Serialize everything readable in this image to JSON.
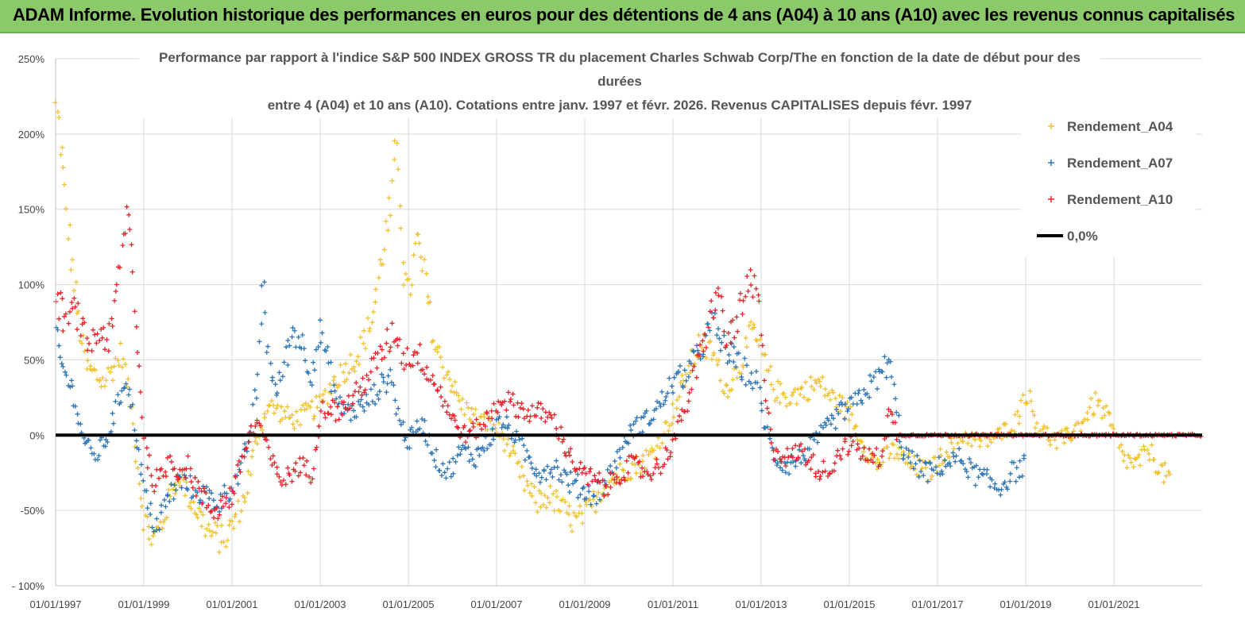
{
  "banner": {
    "title": "ADAM Informe. Evolution historique des performances en euros pour des détentions de 4 ans (A04) à 10 ans (A10) avec les revenus connus capitalisés"
  },
  "colors": {
    "banner_bg": "#8cc96a",
    "a04": "#f2c12e",
    "a07": "#2e75b6",
    "a10": "#e8232a",
    "zero": "#000000",
    "grid": "#d9d9d9"
  },
  "chart_data": {
    "type": "scatter",
    "title_lines": [
      "Performance par rapport à l'indice S&P 500 INDEX GROSS TR  du placement Charles Schwab Corp/The en fonction de la date de début pour des",
      "durées",
      "entre 4 (A04) et 10 ans (A10). Cotations entre janv. 1997 et févr. 2026. Revenus CAPITALISES depuis févr. 1997"
    ],
    "x_axis": {
      "range": [
        1997.0,
        2023.0
      ],
      "ticks": [
        1997,
        1999,
        2001,
        2003,
        2005,
        2007,
        2009,
        2011,
        2013,
        2015,
        2017,
        2019,
        2021
      ],
      "tick_labels": [
        "01/01/1997",
        "01/01/1999",
        "01/01/2001",
        "01/01/2003",
        "01/01/2005",
        "01/01/2007",
        "01/01/2009",
        "01/01/2011",
        "01/01/2013",
        "01/01/2015",
        "01/01/2017",
        "01/01/2019",
        "01/01/2021"
      ]
    },
    "y_axis": {
      "range": [
        -100,
        250
      ],
      "ticks": [
        -100,
        -50,
        0,
        50,
        100,
        150,
        200,
        250
      ],
      "tick_labels": [
        "- 100%",
        "-50%",
        "0%",
        "50%",
        "100%",
        "150%",
        "200%",
        "250%"
      ],
      "unit": "%"
    },
    "legend_position": "top-right",
    "series": [
      {
        "name": "Rendement_A04",
        "marker": "+",
        "color": "#f2c12e",
        "points": [
          [
            1997.0,
            215
          ],
          [
            1997.1,
            200
          ],
          [
            1997.2,
            160
          ],
          [
            1997.35,
            120
          ],
          [
            1997.5,
            80
          ],
          [
            1997.7,
            45
          ],
          [
            1997.9,
            40
          ],
          [
            1998.1,
            35
          ],
          [
            1998.3,
            45
          ],
          [
            1998.5,
            55
          ],
          [
            1998.7,
            20
          ],
          [
            1998.85,
            -20
          ],
          [
            1999.0,
            -55
          ],
          [
            1999.2,
            -70
          ],
          [
            1999.4,
            -60
          ],
          [
            1999.6,
            -40
          ],
          [
            1999.8,
            -25
          ],
          [
            2000.0,
            -40
          ],
          [
            2000.2,
            -50
          ],
          [
            2000.5,
            -65
          ],
          [
            2000.8,
            -70
          ],
          [
            2001.0,
            -60
          ],
          [
            2001.3,
            -40
          ],
          [
            2001.5,
            -10
          ],
          [
            2001.8,
            20
          ],
          [
            2002.1,
            15
          ],
          [
            2002.4,
            10
          ],
          [
            2002.7,
            15
          ],
          [
            2003.0,
            20
          ],
          [
            2003.3,
            35
          ],
          [
            2003.6,
            45
          ],
          [
            2003.9,
            55
          ],
          [
            2004.2,
            80
          ],
          [
            2004.4,
            120
          ],
          [
            2004.6,
            150
          ],
          [
            2004.75,
            195
          ],
          [
            2004.9,
            110
          ],
          [
            2005.0,
            90
          ],
          [
            2005.2,
            130
          ],
          [
            2005.4,
            100
          ],
          [
            2005.6,
            60
          ],
          [
            2005.9,
            40
          ],
          [
            2006.2,
            20
          ],
          [
            2006.6,
            10
          ],
          [
            2007.0,
            5
          ],
          [
            2007.3,
            -10
          ],
          [
            2007.6,
            -30
          ],
          [
            2007.9,
            -45
          ],
          [
            2008.2,
            -40
          ],
          [
            2008.5,
            -50
          ],
          [
            2008.8,
            -58
          ],
          [
            2009.1,
            -50
          ],
          [
            2009.4,
            -35
          ],
          [
            2009.8,
            -25
          ],
          [
            2010.2,
            -20
          ],
          [
            2010.6,
            -10
          ],
          [
            2011.0,
            15
          ],
          [
            2011.3,
            40
          ],
          [
            2011.6,
            60
          ],
          [
            2011.9,
            55
          ],
          [
            2012.2,
            30
          ],
          [
            2012.5,
            45
          ],
          [
            2012.8,
            70
          ],
          [
            2013.0,
            55
          ],
          [
            2013.3,
            30
          ],
          [
            2013.6,
            25
          ],
          [
            2014.0,
            30
          ],
          [
            2014.3,
            35
          ],
          [
            2014.6,
            25
          ],
          [
            2015.0,
            15
          ],
          [
            2015.3,
            -5
          ],
          [
            2015.6,
            -20
          ],
          [
            2016.0,
            -10
          ],
          [
            2016.4,
            -20
          ],
          [
            2016.8,
            -25
          ],
          [
            2017.2,
            -10
          ],
          [
            2017.6,
            0
          ],
          [
            2018.0,
            -5
          ],
          [
            2018.4,
            0
          ],
          [
            2018.8,
            10
          ],
          [
            2019.0,
            30
          ],
          [
            2019.3,
            5
          ],
          [
            2019.7,
            -5
          ],
          [
            2020.0,
            0
          ],
          [
            2020.3,
            10
          ],
          [
            2020.6,
            22
          ],
          [
            2020.9,
            10
          ],
          [
            2021.2,
            -15
          ],
          [
            2021.5,
            -20
          ],
          [
            2021.8,
            -10
          ],
          [
            2022.1,
            -25
          ],
          [
            2022.3,
            -28
          ]
        ]
      },
      {
        "name": "Rendement_A07",
        "marker": "+",
        "color": "#2e75b6",
        "points": [
          [
            1997.0,
            65
          ],
          [
            1997.15,
            45
          ],
          [
            1997.3,
            35
          ],
          [
            1997.45,
            25
          ],
          [
            1997.55,
            5
          ],
          [
            1997.7,
            -5
          ],
          [
            1997.85,
            -15
          ],
          [
            1998.0,
            -10
          ],
          [
            1998.2,
            0
          ],
          [
            1998.4,
            20
          ],
          [
            1998.6,
            40
          ],
          [
            1998.75,
            15
          ],
          [
            1998.9,
            -15
          ],
          [
            1999.1,
            -50
          ],
          [
            1999.3,
            -60
          ],
          [
            1999.5,
            -45
          ],
          [
            1999.8,
            -30
          ],
          [
            2000.1,
            -35
          ],
          [
            2000.4,
            -40
          ],
          [
            2000.7,
            -45
          ],
          [
            2000.95,
            -35
          ],
          [
            2001.2,
            -25
          ],
          [
            2001.4,
            0
          ],
          [
            2001.6,
            40
          ],
          [
            2001.7,
            110
          ],
          [
            2001.8,
            60
          ],
          [
            2002.0,
            25
          ],
          [
            2002.2,
            50
          ],
          [
            2002.4,
            70
          ],
          [
            2002.6,
            60
          ],
          [
            2002.8,
            40
          ],
          [
            2003.0,
            70
          ],
          [
            2003.2,
            45
          ],
          [
            2003.4,
            20
          ],
          [
            2003.7,
            15
          ],
          [
            2004.0,
            20
          ],
          [
            2004.3,
            30
          ],
          [
            2004.6,
            40
          ],
          [
            2004.8,
            10
          ],
          [
            2005.0,
            -5
          ],
          [
            2005.3,
            10
          ],
          [
            2005.6,
            -15
          ],
          [
            2005.9,
            -25
          ],
          [
            2006.2,
            -10
          ],
          [
            2006.5,
            -15
          ],
          [
            2006.8,
            -5
          ],
          [
            2007.1,
            10
          ],
          [
            2007.4,
            0
          ],
          [
            2007.7,
            -15
          ],
          [
            2008.0,
            -25
          ],
          [
            2008.3,
            -20
          ],
          [
            2008.6,
            -30
          ],
          [
            2008.9,
            -35
          ],
          [
            2009.2,
            -40
          ],
          [
            2009.5,
            -30
          ],
          [
            2009.8,
            -10
          ],
          [
            2010.1,
            5
          ],
          [
            2010.4,
            10
          ],
          [
            2010.7,
            20
          ],
          [
            2011.0,
            35
          ],
          [
            2011.3,
            40
          ],
          [
            2011.6,
            55
          ],
          [
            2011.9,
            75
          ],
          [
            2012.1,
            60
          ],
          [
            2012.4,
            50
          ],
          [
            2012.7,
            40
          ],
          [
            2012.9,
            35
          ],
          [
            2013.1,
            5
          ],
          [
            2013.3,
            -15
          ],
          [
            2013.6,
            -20
          ],
          [
            2013.9,
            -15
          ],
          [
            2014.2,
            -5
          ],
          [
            2014.5,
            5
          ],
          [
            2014.8,
            15
          ],
          [
            2015.1,
            20
          ],
          [
            2015.4,
            30
          ],
          [
            2015.7,
            40
          ],
          [
            2015.9,
            50
          ],
          [
            2016.2,
            -10
          ],
          [
            2016.5,
            -20
          ],
          [
            2016.8,
            -25
          ],
          [
            2017.1,
            -20
          ],
          [
            2017.5,
            -15
          ],
          [
            2017.8,
            -25
          ],
          [
            2018.1,
            -30
          ],
          [
            2018.4,
            -35
          ],
          [
            2018.7,
            -25
          ],
          [
            2019.0,
            -20
          ]
        ]
      },
      {
        "name": "Rendement_A10",
        "marker": "+",
        "color": "#e8232a",
        "points": [
          [
            1997.0,
            95
          ],
          [
            1997.15,
            80
          ],
          [
            1997.3,
            75
          ],
          [
            1997.45,
            85
          ],
          [
            1997.6,
            70
          ],
          [
            1997.75,
            60
          ],
          [
            1997.9,
            65
          ],
          [
            1998.05,
            70
          ],
          [
            1998.2,
            60
          ],
          [
            1998.35,
            85
          ],
          [
            1998.5,
            120
          ],
          [
            1998.6,
            150
          ],
          [
            1998.7,
            130
          ],
          [
            1998.85,
            60
          ],
          [
            1999.0,
            0
          ],
          [
            1999.2,
            -30
          ],
          [
            1999.4,
            -30
          ],
          [
            1999.6,
            -15
          ],
          [
            1999.8,
            -25
          ],
          [
            2000.0,
            -20
          ],
          [
            2000.2,
            -35
          ],
          [
            2000.4,
            -45
          ],
          [
            2000.6,
            -50
          ],
          [
            2000.8,
            -45
          ],
          [
            2001.0,
            -40
          ],
          [
            2001.2,
            -20
          ],
          [
            2001.4,
            0
          ],
          [
            2001.6,
            10
          ],
          [
            2001.8,
            -10
          ],
          [
            2002.0,
            -25
          ],
          [
            2002.2,
            -30
          ],
          [
            2002.5,
            -20
          ],
          [
            2002.8,
            -25
          ],
          [
            2003.0,
            15
          ],
          [
            2003.2,
            20
          ],
          [
            2003.4,
            15
          ],
          [
            2003.6,
            20
          ],
          [
            2003.9,
            30
          ],
          [
            2004.2,
            45
          ],
          [
            2004.5,
            60
          ],
          [
            2004.7,
            70
          ],
          [
            2004.9,
            50
          ],
          [
            2005.2,
            55
          ],
          [
            2005.4,
            45
          ],
          [
            2005.7,
            30
          ],
          [
            2006.0,
            10
          ],
          [
            2006.3,
            0
          ],
          [
            2006.6,
            5
          ],
          [
            2006.9,
            15
          ],
          [
            2007.1,
            25
          ],
          [
            2007.4,
            20
          ],
          [
            2007.7,
            15
          ],
          [
            2008.0,
            15
          ],
          [
            2008.3,
            10
          ],
          [
            2008.6,
            -10
          ],
          [
            2008.9,
            -25
          ],
          [
            2009.2,
            -30
          ],
          [
            2009.5,
            -35
          ],
          [
            2009.8,
            -25
          ],
          [
            2010.1,
            -20
          ],
          [
            2010.4,
            -25
          ],
          [
            2010.7,
            -20
          ],
          [
            2011.0,
            -5
          ],
          [
            2011.3,
            20
          ],
          [
            2011.6,
            50
          ],
          [
            2011.8,
            70
          ],
          [
            2012.0,
            100
          ],
          [
            2012.2,
            60
          ],
          [
            2012.5,
            80
          ],
          [
            2012.75,
            100
          ],
          [
            2012.95,
            90
          ],
          [
            2013.1,
            20
          ],
          [
            2013.3,
            -10
          ],
          [
            2013.6,
            -15
          ],
          [
            2013.9,
            -10
          ],
          [
            2014.2,
            -20
          ],
          [
            2014.5,
            -25
          ],
          [
            2014.8,
            -10
          ],
          [
            2015.1,
            -5
          ],
          [
            2015.4,
            -15
          ],
          [
            2015.7,
            -15
          ],
          [
            2015.9,
            15
          ],
          [
            2016.1,
            0
          ],
          [
            2017.0,
            0
          ],
          [
            2018.0,
            0
          ],
          [
            2019.0,
            0
          ],
          [
            2020.0,
            0
          ],
          [
            2021.0,
            0
          ],
          [
            2022.0,
            0
          ],
          [
            2023.0,
            0
          ]
        ]
      },
      {
        "name": "0,0%",
        "marker": "line",
        "color": "#000000",
        "points": [
          [
            1997.0,
            0
          ],
          [
            2023.0,
            0
          ]
        ]
      }
    ]
  }
}
